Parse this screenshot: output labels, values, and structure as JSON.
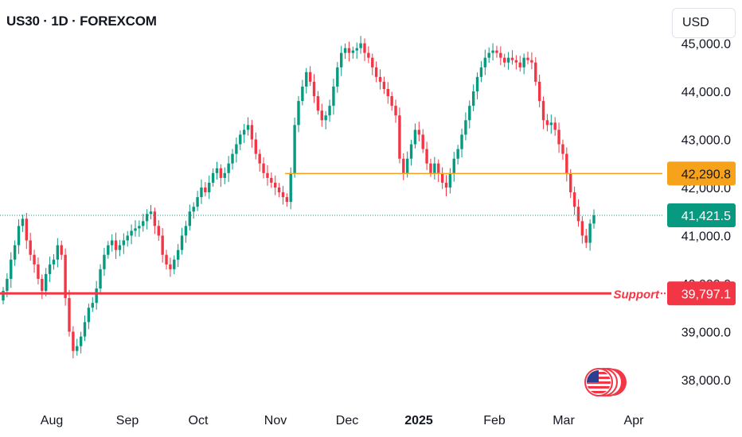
{
  "header": {
    "symbol_title": "US30 · 1D · FOREXCOM",
    "currency": "USD"
  },
  "colors": {
    "up": "#089981",
    "down": "#f23645",
    "resistance": "#f7a21b",
    "support": "#f23645",
    "last_price": "#089981",
    "axis_text": "#131722"
  },
  "chart_data": {
    "type": "candlestick",
    "title": "US30 · 1D · FOREXCOM",
    "ylim": [
      37700,
      45100
    ],
    "y_ticks": [
      "38,000.0",
      "39,000.0",
      "40,000.0",
      "41,000.0",
      "42,000.0",
      "43,000.0",
      "44,000.0",
      "45,000.0"
    ],
    "x_ticks": [
      "Aug",
      "Sep",
      "Oct",
      "Nov",
      "Dec",
      "2025",
      "Feb",
      "Mar",
      "Apr"
    ],
    "grid": false,
    "closes": [
      39850,
      40100,
      40500,
      40800,
      41200,
      41350,
      40900,
      40600,
      40400,
      40100,
      39850,
      40200,
      40400,
      40500,
      40800,
      40600,
      39700,
      39000,
      38600,
      38700,
      38900,
      39200,
      39500,
      39600,
      39900,
      40300,
      40600,
      40800,
      40900,
      40700,
      40800,
      40900,
      41000,
      41100,
      41150,
      41200,
      41300,
      41450,
      41500,
      41200,
      41000,
      40600,
      40400,
      40300,
      40500,
      40700,
      41000,
      41200,
      41500,
      41600,
      41800,
      42000,
      41900,
      42100,
      42300,
      42400,
      42200,
      42300,
      42500,
      42700,
      42900,
      43100,
      43200,
      43300,
      43000,
      42700,
      42500,
      42300,
      42200,
      42100,
      42000,
      41900,
      41800,
      41700,
      42300,
      43300,
      43800,
      44100,
      44400,
      44200,
      43900,
      43600,
      43400,
      43500,
      43700,
      44100,
      44500,
      44800,
      44900,
      44800,
      44850,
      44900,
      45000,
      44800,
      44700,
      44500,
      44300,
      44200,
      44050,
      43900,
      43700,
      43500,
      42600,
      42300,
      42600,
      42900,
      43200,
      43100,
      42800,
      42500,
      42300,
      42500,
      42300,
      42100,
      42000,
      42300,
      42600,
      42800,
      43100,
      43400,
      43700,
      44000,
      44300,
      44500,
      44700,
      44800,
      44850,
      44800,
      44700,
      44600,
      44700,
      44650,
      44600,
      44500,
      44700,
      44650,
      44600,
      44200,
      43800,
      43400,
      43300,
      43350,
      43200,
      42900,
      42700,
      42300,
      41900,
      41600,
      41300,
      41000,
      40850,
      41250,
      41421.5
    ],
    "key_levels": [
      {
        "label": "42,290.8",
        "value": 42290.8,
        "kind": "resistance"
      },
      {
        "label": "39,797.1",
        "value": 39797.1,
        "kind": "support",
        "annotation": "Support"
      }
    ],
    "last_price": {
      "label": "41,421.5",
      "value": 41421.5
    }
  }
}
